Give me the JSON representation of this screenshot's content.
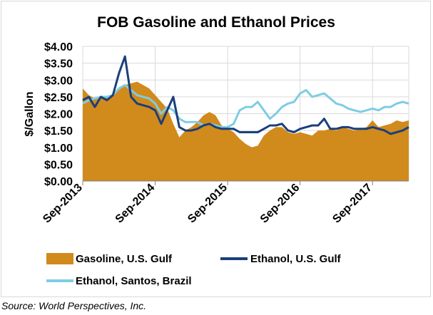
{
  "chart_data": {
    "type": "area",
    "title": "FOB Gasoline and Ethanol Prices",
    "xlabel": "",
    "ylabel": "$/Gallon",
    "ylim": [
      0,
      4
    ],
    "xlim": [
      "2013-09",
      "2018-03"
    ],
    "y_ticks": [
      "$0.00",
      "$0.50",
      "$1.00",
      "$1.50",
      "$2.00",
      "$2.50",
      "$3.00",
      "$3.50",
      "$4.00"
    ],
    "x_ticks": [
      "Sep-2013",
      "Sep-2014",
      "Sep-2015",
      "Sep-2016",
      "Sep-2017"
    ],
    "grid": true,
    "legend_position": "bottom",
    "x": [
      "2013-09",
      "2013-10",
      "2013-11",
      "2013-12",
      "2014-01",
      "2014-02",
      "2014-03",
      "2014-04",
      "2014-05",
      "2014-06",
      "2014-07",
      "2014-08",
      "2014-09",
      "2014-10",
      "2014-11",
      "2014-12",
      "2015-01",
      "2015-02",
      "2015-03",
      "2015-04",
      "2015-05",
      "2015-06",
      "2015-07",
      "2015-08",
      "2015-09",
      "2015-10",
      "2015-11",
      "2015-12",
      "2016-01",
      "2016-02",
      "2016-03",
      "2016-04",
      "2016-05",
      "2016-06",
      "2016-07",
      "2016-08",
      "2016-09",
      "2016-10",
      "2016-11",
      "2016-12",
      "2017-01",
      "2017-02",
      "2017-03",
      "2017-04",
      "2017-05",
      "2017-06",
      "2017-07",
      "2017-08",
      "2017-09",
      "2017-10",
      "2017-11",
      "2017-12",
      "2018-01",
      "2018-02",
      "2018-03"
    ],
    "series": [
      {
        "name": "Gasoline, U.S. Gulf",
        "type": "area",
        "color": "#d18a1c",
        "values": [
          2.75,
          2.55,
          2.45,
          2.5,
          2.5,
          2.55,
          2.7,
          2.85,
          2.9,
          2.95,
          2.85,
          2.75,
          2.55,
          2.35,
          2.15,
          1.7,
          1.3,
          1.5,
          1.6,
          1.75,
          1.95,
          2.05,
          1.95,
          1.65,
          1.55,
          1.45,
          1.25,
          1.1,
          1.0,
          1.05,
          1.35,
          1.5,
          1.6,
          1.6,
          1.45,
          1.4,
          1.45,
          1.4,
          1.35,
          1.5,
          1.5,
          1.55,
          1.5,
          1.6,
          1.55,
          1.5,
          1.55,
          1.6,
          1.8,
          1.6,
          1.65,
          1.7,
          1.8,
          1.75,
          1.8
        ]
      },
      {
        "name": "Ethanol, U.S. Gulf",
        "type": "line",
        "color": "#1b3f7a",
        "values": [
          2.4,
          2.5,
          2.2,
          2.5,
          2.4,
          2.55,
          3.2,
          3.7,
          2.5,
          2.3,
          2.25,
          2.2,
          2.1,
          1.7,
          2.1,
          2.5,
          1.6,
          1.5,
          1.5,
          1.55,
          1.65,
          1.7,
          1.6,
          1.55,
          1.55,
          1.55,
          1.45,
          1.45,
          1.45,
          1.45,
          1.55,
          1.65,
          1.65,
          1.7,
          1.5,
          1.45,
          1.55,
          1.6,
          1.65,
          1.65,
          1.85,
          1.55,
          1.55,
          1.6,
          1.6,
          1.55,
          1.55,
          1.55,
          1.6,
          1.55,
          1.5,
          1.4,
          1.45,
          1.5,
          1.6
        ]
      },
      {
        "name": "Ethanol, Santos, Brazil",
        "type": "line",
        "color": "#7ecde2",
        "values": [
          2.3,
          2.4,
          2.45,
          2.5,
          2.5,
          2.55,
          2.75,
          2.85,
          2.7,
          2.55,
          2.5,
          2.45,
          2.3,
          2.0,
          2.2,
          2.1,
          1.85,
          1.75,
          1.75,
          1.75,
          1.65,
          1.7,
          1.65,
          1.6,
          1.6,
          1.7,
          2.1,
          2.2,
          2.2,
          2.35,
          2.1,
          1.85,
          2.0,
          2.2,
          2.3,
          2.35,
          2.6,
          2.7,
          2.5,
          2.55,
          2.6,
          2.45,
          2.3,
          2.25,
          2.15,
          2.1,
          2.05,
          2.1,
          2.15,
          2.1,
          2.2,
          2.2,
          2.3,
          2.35,
          2.3
        ]
      }
    ]
  },
  "source": "Source: World Perspectives, Inc."
}
